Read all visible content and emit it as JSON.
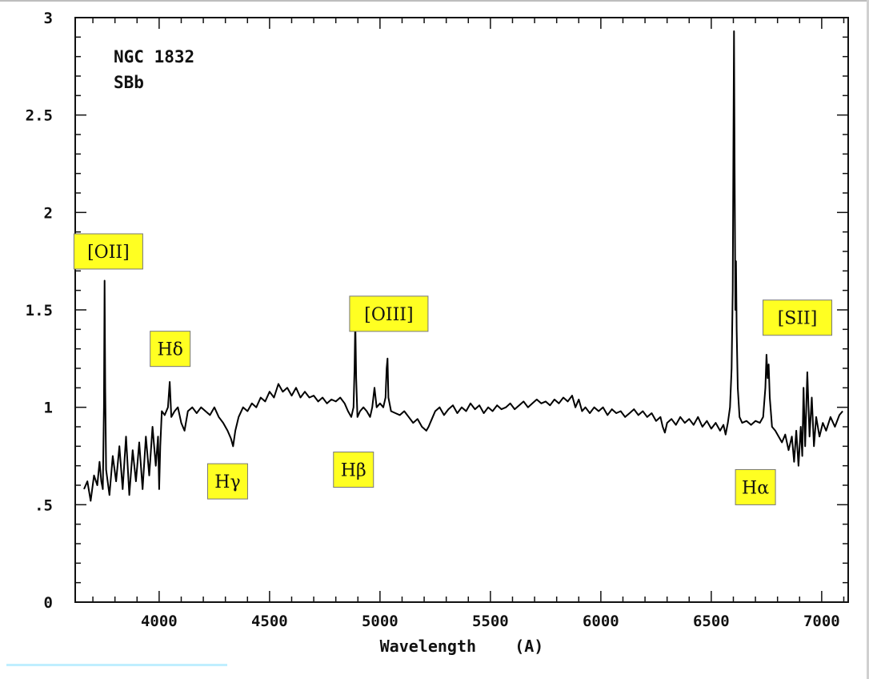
{
  "chart_data": {
    "type": "line",
    "annotation_object": "NGC 1832",
    "annotation_type": "SBb",
    "xlabel": "Wavelength    (A)",
    "ylabel": "",
    "xlim": [
      3620,
      7120
    ],
    "ylim": [
      0,
      3
    ],
    "x_ticks": [
      {
        "value": 4000,
        "label": "4000"
      },
      {
        "value": 4500,
        "label": "4500"
      },
      {
        "value": 5000,
        "label": "5000"
      },
      {
        "value": 5500,
        "label": "5500"
      },
      {
        "value": 6000,
        "label": "6000"
      },
      {
        "value": 6500,
        "label": "6500"
      },
      {
        "value": 7000,
        "label": "7000"
      }
    ],
    "y_ticks": [
      {
        "value": 0,
        "label": "0"
      },
      {
        "value": 0.5,
        "label": ".5"
      },
      {
        "value": 1,
        "label": "1"
      },
      {
        "value": 1.5,
        "label": "1.5"
      },
      {
        "value": 2,
        "label": "2"
      },
      {
        "value": 2.5,
        "label": "2.5"
      },
      {
        "value": 3,
        "label": "3"
      }
    ],
    "grid": false,
    "line_color": "#000000",
    "label_box_color": "#ffff22",
    "series": [
      {
        "points": [
          [
            3660,
            0.58
          ],
          [
            3675,
            0.62
          ],
          [
            3690,
            0.52
          ],
          [
            3705,
            0.65
          ],
          [
            3720,
            0.6
          ],
          [
            3730,
            0.72
          ],
          [
            3738,
            0.62
          ],
          [
            3745,
            0.58
          ],
          [
            3750,
            1.0
          ],
          [
            3753,
            1.65
          ],
          [
            3756,
            1.1
          ],
          [
            3760,
            0.68
          ],
          [
            3775,
            0.55
          ],
          [
            3790,
            0.75
          ],
          [
            3805,
            0.62
          ],
          [
            3820,
            0.8
          ],
          [
            3835,
            0.58
          ],
          [
            3850,
            0.85
          ],
          [
            3865,
            0.55
          ],
          [
            3880,
            0.78
          ],
          [
            3895,
            0.62
          ],
          [
            3910,
            0.82
          ],
          [
            3925,
            0.58
          ],
          [
            3940,
            0.85
          ],
          [
            3955,
            0.65
          ],
          [
            3970,
            0.9
          ],
          [
            3985,
            0.7
          ],
          [
            3995,
            0.85
          ],
          [
            4000,
            0.58
          ],
          [
            4005,
            0.8
          ],
          [
            4012,
            0.98
          ],
          [
            4025,
            0.96
          ],
          [
            4040,
            1.0
          ],
          [
            4048,
            1.13
          ],
          [
            4055,
            0.95
          ],
          [
            4070,
            0.98
          ],
          [
            4085,
            1.0
          ],
          [
            4100,
            0.92
          ],
          [
            4115,
            0.88
          ],
          [
            4130,
            0.98
          ],
          [
            4150,
            1.0
          ],
          [
            4170,
            0.97
          ],
          [
            4190,
            1.0
          ],
          [
            4210,
            0.98
          ],
          [
            4230,
            0.96
          ],
          [
            4250,
            1.0
          ],
          [
            4270,
            0.95
          ],
          [
            4290,
            0.92
          ],
          [
            4310,
            0.88
          ],
          [
            4325,
            0.84
          ],
          [
            4335,
            0.8
          ],
          [
            4345,
            0.88
          ],
          [
            4360,
            0.95
          ],
          [
            4380,
            1.0
          ],
          [
            4400,
            0.98
          ],
          [
            4420,
            1.02
          ],
          [
            4440,
            1.0
          ],
          [
            4460,
            1.05
          ],
          [
            4480,
            1.03
          ],
          [
            4500,
            1.08
          ],
          [
            4520,
            1.05
          ],
          [
            4540,
            1.12
          ],
          [
            4560,
            1.08
          ],
          [
            4580,
            1.1
          ],
          [
            4600,
            1.06
          ],
          [
            4620,
            1.1
          ],
          [
            4640,
            1.05
          ],
          [
            4660,
            1.08
          ],
          [
            4680,
            1.05
          ],
          [
            4700,
            1.06
          ],
          [
            4720,
            1.03
          ],
          [
            4740,
            1.05
          ],
          [
            4760,
            1.02
          ],
          [
            4780,
            1.04
          ],
          [
            4800,
            1.03
          ],
          [
            4820,
            1.05
          ],
          [
            4840,
            1.02
          ],
          [
            4855,
            0.98
          ],
          [
            4870,
            0.95
          ],
          [
            4880,
            1.0
          ],
          [
            4885,
            1.2
          ],
          [
            4888,
            1.45
          ],
          [
            4892,
            1.15
          ],
          [
            4898,
            0.95
          ],
          [
            4910,
            0.98
          ],
          [
            4925,
            1.0
          ],
          [
            4940,
            0.98
          ],
          [
            4955,
            0.95
          ],
          [
            4965,
            1.0
          ],
          [
            4975,
            1.1
          ],
          [
            4985,
            1.0
          ],
          [
            5000,
            1.02
          ],
          [
            5015,
            1.0
          ],
          [
            5025,
            1.05
          ],
          [
            5030,
            1.2
          ],
          [
            5034,
            1.25
          ],
          [
            5038,
            1.05
          ],
          [
            5050,
            0.98
          ],
          [
            5070,
            0.97
          ],
          [
            5090,
            0.96
          ],
          [
            5110,
            0.98
          ],
          [
            5130,
            0.95
          ],
          [
            5150,
            0.92
          ],
          [
            5170,
            0.94
          ],
          [
            5190,
            0.9
          ],
          [
            5210,
            0.88
          ],
          [
            5220,
            0.9
          ],
          [
            5235,
            0.94
          ],
          [
            5250,
            0.98
          ],
          [
            5270,
            1.0
          ],
          [
            5290,
            0.96
          ],
          [
            5310,
            0.99
          ],
          [
            5330,
            1.01
          ],
          [
            5350,
            0.97
          ],
          [
            5370,
            1.0
          ],
          [
            5390,
            0.98
          ],
          [
            5410,
            1.02
          ],
          [
            5430,
            0.99
          ],
          [
            5450,
            1.01
          ],
          [
            5470,
            0.97
          ],
          [
            5490,
            1.0
          ],
          [
            5510,
            0.98
          ],
          [
            5530,
            1.01
          ],
          [
            5550,
            0.99
          ],
          [
            5570,
            1.0
          ],
          [
            5590,
            1.02
          ],
          [
            5610,
            0.99
          ],
          [
            5630,
            1.01
          ],
          [
            5650,
            1.03
          ],
          [
            5670,
            1.0
          ],
          [
            5690,
            1.02
          ],
          [
            5710,
            1.04
          ],
          [
            5730,
            1.02
          ],
          [
            5750,
            1.03
          ],
          [
            5770,
            1.01
          ],
          [
            5790,
            1.04
          ],
          [
            5810,
            1.02
          ],
          [
            5830,
            1.05
          ],
          [
            5850,
            1.03
          ],
          [
            5870,
            1.06
          ],
          [
            5885,
            1.0
          ],
          [
            5900,
            1.04
          ],
          [
            5915,
            0.98
          ],
          [
            5930,
            1.0
          ],
          [
            5950,
            0.97
          ],
          [
            5970,
            1.0
          ],
          [
            5990,
            0.98
          ],
          [
            6010,
            1.0
          ],
          [
            6030,
            0.96
          ],
          [
            6050,
            0.99
          ],
          [
            6070,
            0.97
          ],
          [
            6090,
            0.98
          ],
          [
            6110,
            0.95
          ],
          [
            6130,
            0.97
          ],
          [
            6150,
            0.99
          ],
          [
            6170,
            0.96
          ],
          [
            6190,
            0.98
          ],
          [
            6210,
            0.95
          ],
          [
            6230,
            0.97
          ],
          [
            6250,
            0.93
          ],
          [
            6270,
            0.95
          ],
          [
            6280,
            0.9
          ],
          [
            6290,
            0.87
          ],
          [
            6300,
            0.92
          ],
          [
            6320,
            0.94
          ],
          [
            6340,
            0.91
          ],
          [
            6360,
            0.95
          ],
          [
            6380,
            0.92
          ],
          [
            6400,
            0.94
          ],
          [
            6420,
            0.91
          ],
          [
            6440,
            0.95
          ],
          [
            6460,
            0.9
          ],
          [
            6480,
            0.93
          ],
          [
            6500,
            0.89
          ],
          [
            6520,
            0.92
          ],
          [
            6540,
            0.88
          ],
          [
            6555,
            0.91
          ],
          [
            6565,
            0.86
          ],
          [
            6575,
            0.92
          ],
          [
            6585,
            1.0
          ],
          [
            6592,
            1.2
          ],
          [
            6597,
            1.6
          ],
          [
            6600,
            2.3
          ],
          [
            6603,
            2.93
          ],
          [
            6606,
            2.2
          ],
          [
            6609,
            1.5
          ],
          [
            6612,
            1.75
          ],
          [
            6615,
            1.4
          ],
          [
            6620,
            1.1
          ],
          [
            6628,
            0.95
          ],
          [
            6640,
            0.92
          ],
          [
            6660,
            0.93
          ],
          [
            6680,
            0.91
          ],
          [
            6700,
            0.93
          ],
          [
            6720,
            0.92
          ],
          [
            6735,
            0.95
          ],
          [
            6745,
            1.1
          ],
          [
            6750,
            1.27
          ],
          [
            6755,
            1.15
          ],
          [
            6760,
            1.22
          ],
          [
            6765,
            1.05
          ],
          [
            6775,
            0.9
          ],
          [
            6790,
            0.88
          ],
          [
            6805,
            0.85
          ],
          [
            6820,
            0.82
          ],
          [
            6835,
            0.86
          ],
          [
            6850,
            0.78
          ],
          [
            6865,
            0.85
          ],
          [
            6875,
            0.72
          ],
          [
            6885,
            0.88
          ],
          [
            6895,
            0.7
          ],
          [
            6905,
            0.9
          ],
          [
            6912,
            0.75
          ],
          [
            6918,
            1.1
          ],
          [
            6925,
            0.8
          ],
          [
            6935,
            1.18
          ],
          [
            6945,
            0.85
          ],
          [
            6955,
            1.05
          ],
          [
            6965,
            0.8
          ],
          [
            6975,
            0.95
          ],
          [
            6990,
            0.85
          ],
          [
            7005,
            0.92
          ],
          [
            7020,
            0.88
          ],
          [
            7040,
            0.95
          ],
          [
            7060,
            0.9
          ],
          [
            7080,
            0.96
          ],
          [
            7095,
            0.98
          ]
        ]
      }
    ],
    "line_labels": [
      {
        "text": "[OII]",
        "x": 3770,
        "y": 1.8
      },
      {
        "text": "Hδ",
        "x": 4050,
        "y": 1.3
      },
      {
        "text": "Hγ",
        "x": 4310,
        "y": 0.62
      },
      {
        "text": "Hβ",
        "x": 4880,
        "y": 0.68
      },
      {
        "text": "[OIII]",
        "x": 5040,
        "y": 1.48
      },
      {
        "text": "Hα",
        "x": 6700,
        "y": 0.59
      },
      {
        "text": "[SII]",
        "x": 6890,
        "y": 1.46
      }
    ]
  }
}
